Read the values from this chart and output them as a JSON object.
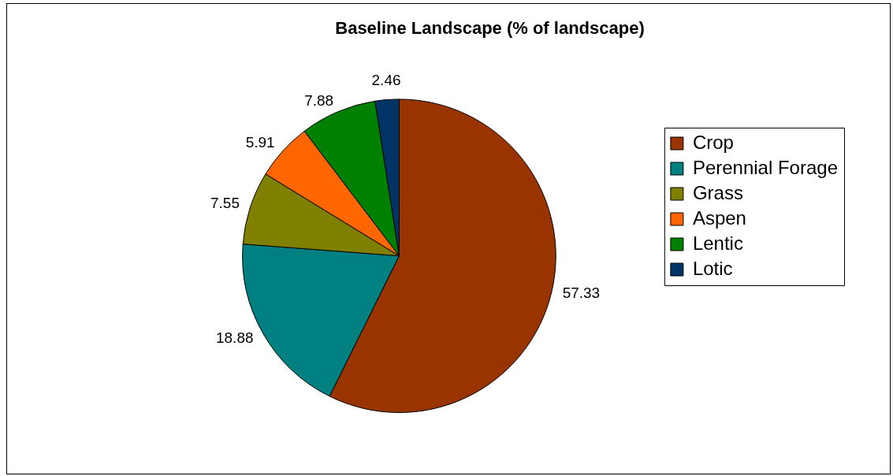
{
  "chart_data": {
    "type": "pie",
    "title": "Baseline Landscape (% of landscape)",
    "categories": [
      "Crop",
      "Perennial Forage",
      "Grass",
      "Aspen",
      "Lentic",
      "Lotic"
    ],
    "values": [
      57.33,
      18.88,
      7.55,
      5.91,
      7.88,
      2.46
    ],
    "colors": [
      "#993300",
      "#008080",
      "#808000",
      "#ff6600",
      "#008000",
      "#003366"
    ],
    "data_labels": true,
    "legend": "right"
  }
}
